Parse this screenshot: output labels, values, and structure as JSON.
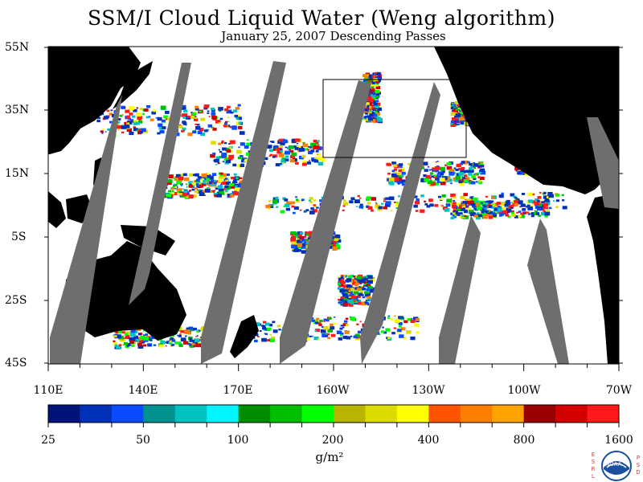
{
  "title": "SSM/I Cloud Liquid Water (Weng algorithm)",
  "subtitle": "January 25, 2007  Descending Passes",
  "lat_labels": [
    "55N",
    "35N",
    "15N",
    "5S",
    "25S",
    "45S"
  ],
  "lon_labels": [
    "110E",
    "140E",
    "170E",
    "160W",
    "130W",
    "100W",
    "70W"
  ],
  "colorbar": {
    "colors": [
      "#00137b",
      "#0031b9",
      "#0a4bff",
      "#01928f",
      "#00c3c1",
      "#00f5ff",
      "#008e00",
      "#00be00",
      "#00ff00",
      "#b8b500",
      "#dbdb00",
      "#ffff00",
      "#ff5300",
      "#ff7d00",
      "#ffa300",
      "#990000",
      "#d40000",
      "#ff1919"
    ],
    "tick_labels": [
      "25",
      "50",
      "100",
      "200",
      "400",
      "800",
      "1600"
    ],
    "units": "g/m²"
  },
  "colors": {
    "land": "#000000",
    "no_data_swath_gap": "#6e6e6e",
    "ocean_clear": "#ffffff"
  },
  "logo": {
    "text": "NOAA",
    "left_letters": [
      "E",
      "S",
      "R",
      "L"
    ],
    "right_letters": [
      "P",
      "S",
      "D"
    ]
  }
}
